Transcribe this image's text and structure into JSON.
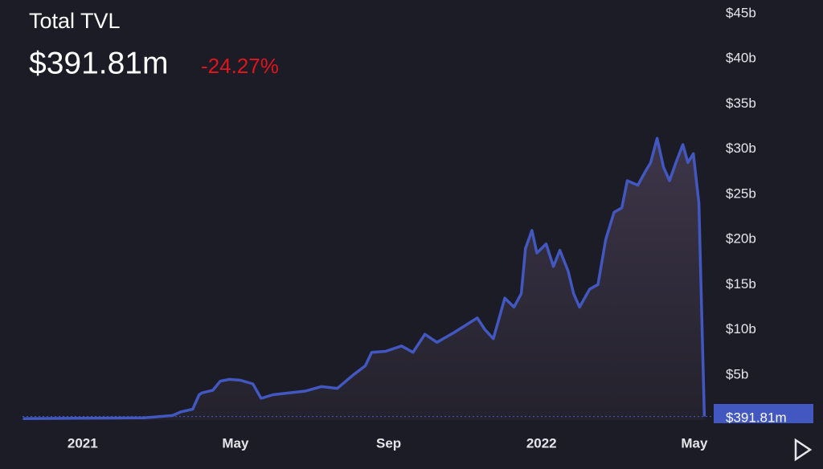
{
  "chart_data": {
    "type": "line",
    "title": "Total TVL",
    "current_label": "$391.81m",
    "change_label": "-24.27%",
    "x": [
      2020.87,
      2020.99,
      2021.135,
      2021.196,
      2021.214,
      2021.24,
      2021.254,
      2021.26,
      2021.284,
      2021.3,
      2021.32,
      2021.344,
      2021.371,
      2021.389,
      2021.415,
      2021.45,
      2021.485,
      2021.52,
      2021.555,
      2021.59,
      2021.616,
      2021.63,
      2021.66,
      2021.695,
      2021.72,
      2021.746,
      2021.772,
      2021.81,
      2021.835,
      2021.86,
      2021.877,
      2021.895,
      2021.92,
      2021.94,
      2021.956,
      2021.965,
      2021.979,
      2021.99,
      2022.01,
      2022.026,
      2022.04,
      2022.058,
      2022.07,
      2022.083,
      2022.105,
      2022.123,
      2022.14,
      2022.158,
      2022.175,
      2022.187,
      2022.21,
      2022.226,
      2022.238,
      2022.252,
      2022.266,
      2022.279,
      2022.293,
      2022.308,
      2022.319,
      2022.331,
      2022.343,
      2022.35,
      2022.355
    ],
    "series": [
      {
        "name": "Total TVL",
        "color": "#4257c0",
        "values": [
          0.15,
          0.2,
          0.25,
          0.5,
          0.9,
          1.2,
          2.8,
          3.0,
          3.3,
          4.3,
          4.5,
          4.4,
          4.0,
          2.4,
          2.8,
          3.0,
          3.2,
          3.7,
          3.5,
          5.0,
          6.0,
          7.5,
          7.6,
          8.2,
          7.5,
          9.5,
          8.6,
          9.7,
          10.5,
          11.3,
          10.0,
          9.0,
          13.5,
          12.5,
          14.0,
          19.0,
          21.0,
          18.5,
          19.5,
          17.0,
          18.8,
          16.5,
          14.0,
          12.5,
          14.5,
          15.0,
          20.0,
          23.0,
          23.5,
          26.5,
          26.0,
          27.5,
          28.5,
          31.2,
          28.0,
          26.5,
          28.5,
          30.5,
          28.5,
          29.5,
          24.0,
          10.0,
          0.39181
        ]
      }
    ],
    "xlim": [
      2020.82,
      2022.37
    ],
    "xticks": [
      {
        "value": 2021,
        "label": "2021"
      },
      {
        "value": 2021.333,
        "label": "May"
      },
      {
        "value": 2021.667,
        "label": "Sep"
      },
      {
        "value": 2022,
        "label": "2022"
      },
      {
        "value": 2022.333,
        "label": "May"
      }
    ],
    "ylim": [
      0,
      45
    ],
    "yticks": [
      {
        "value": 5,
        "label": "$5b"
      },
      {
        "value": 10,
        "label": "$10b"
      },
      {
        "value": 15,
        "label": "$15b"
      },
      {
        "value": 20,
        "label": "$20b"
      },
      {
        "value": 25,
        "label": "$25b"
      },
      {
        "value": 30,
        "label": "$30b"
      },
      {
        "value": 35,
        "label": "$35b"
      },
      {
        "value": 40,
        "label": "$40b"
      },
      {
        "value": 45,
        "label": "$45b"
      }
    ]
  }
}
